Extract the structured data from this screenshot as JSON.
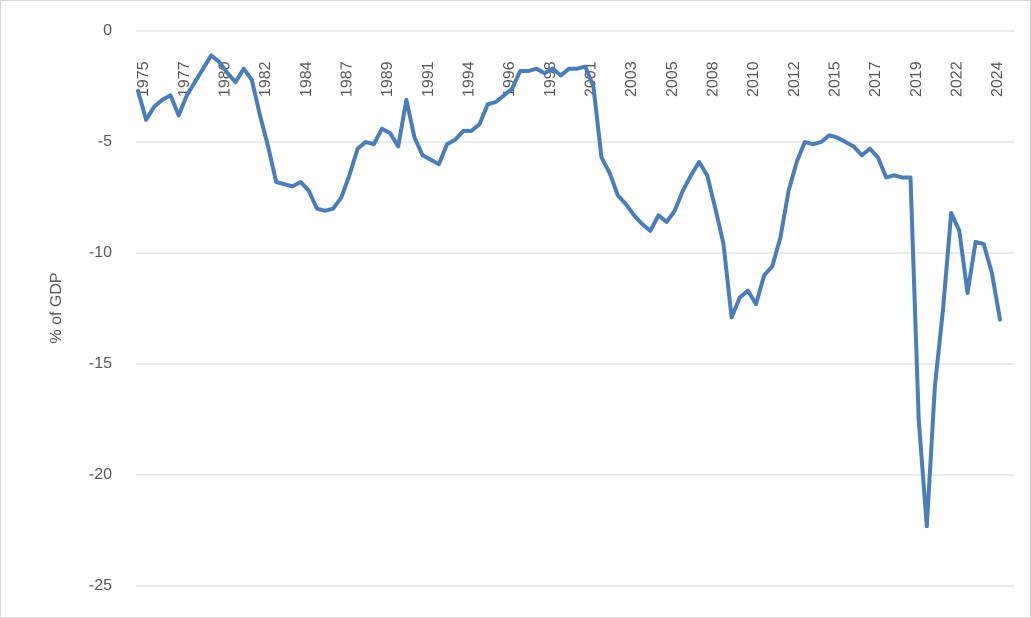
{
  "chart_data": {
    "type": "line",
    "y_label": "% of GDP",
    "categories": [
      "1975",
      null,
      null,
      null,
      null,
      "1977",
      null,
      null,
      null,
      null,
      "1980",
      null,
      null,
      null,
      null,
      "1982",
      null,
      null,
      null,
      null,
      "1984",
      null,
      null,
      null,
      null,
      "1987",
      null,
      null,
      null,
      null,
      "1989",
      null,
      null,
      null,
      null,
      "1991",
      null,
      null,
      null,
      null,
      "1994",
      null,
      null,
      null,
      null,
      "1996",
      null,
      null,
      null,
      null,
      "1998",
      null,
      null,
      null,
      null,
      "2001",
      null,
      null,
      null,
      null,
      "2003",
      null,
      null,
      null,
      null,
      "2005",
      null,
      null,
      null,
      null,
      "2008",
      null,
      null,
      null,
      null,
      "2010",
      null,
      null,
      null,
      null,
      "2012",
      null,
      null,
      null,
      null,
      "2015",
      null,
      null,
      null,
      null,
      "2017",
      null,
      null,
      null,
      null,
      "2019",
      null,
      null,
      null,
      null,
      "2022",
      null,
      null,
      null,
      null,
      "2024",
      null
    ],
    "values": [
      -2.7,
      -4.0,
      -3.4,
      -3.1,
      -2.9,
      -3.8,
      -2.9,
      -2.3,
      -1.7,
      -1.1,
      -1.4,
      -1.9,
      -2.3,
      -1.7,
      -2.2,
      -3.8,
      -5.2,
      -6.8,
      -6.9,
      -7.0,
      -6.8,
      -7.2,
      -8.0,
      -8.1,
      -8.0,
      -7.5,
      -6.5,
      -5.3,
      -5.0,
      -5.1,
      -4.4,
      -4.6,
      -5.2,
      -3.1,
      -4.8,
      -5.6,
      -5.8,
      -6.0,
      -5.1,
      -4.9,
      -4.5,
      -4.5,
      -4.2,
      -3.3,
      -3.2,
      -2.9,
      -2.6,
      -1.8,
      -1.8,
      -1.7,
      -1.9,
      -1.7,
      -2.0,
      -1.7,
      -1.7,
      -1.6,
      -2.5,
      -5.7,
      -6.4,
      -7.4,
      -7.8,
      -8.3,
      -8.7,
      -9.0,
      -8.3,
      -8.6,
      -8.1,
      -7.2,
      -6.5,
      -5.9,
      -6.5,
      -8.0,
      -9.6,
      -12.9,
      -12.0,
      -11.7,
      -12.3,
      -11.0,
      -10.6,
      -9.3,
      -7.2,
      -5.9,
      -5.0,
      -5.1,
      -5.0,
      -4.7,
      -4.8,
      -5.0,
      -5.2,
      -5.6,
      -5.3,
      -5.7,
      -6.6,
      -6.5,
      -6.6,
      -6.6,
      -17.5,
      -22.3,
      -16.0,
      -12.5,
      -8.2,
      -9.0,
      -11.8,
      -9.5,
      -9.6,
      -10.9,
      -13.0
    ],
    "color": "#4a7ebb",
    "ylim": [
      -25,
      0
    ],
    "yticks": [
      0,
      -5,
      -10,
      -15,
      -20,
      -25
    ],
    "grid": true
  }
}
